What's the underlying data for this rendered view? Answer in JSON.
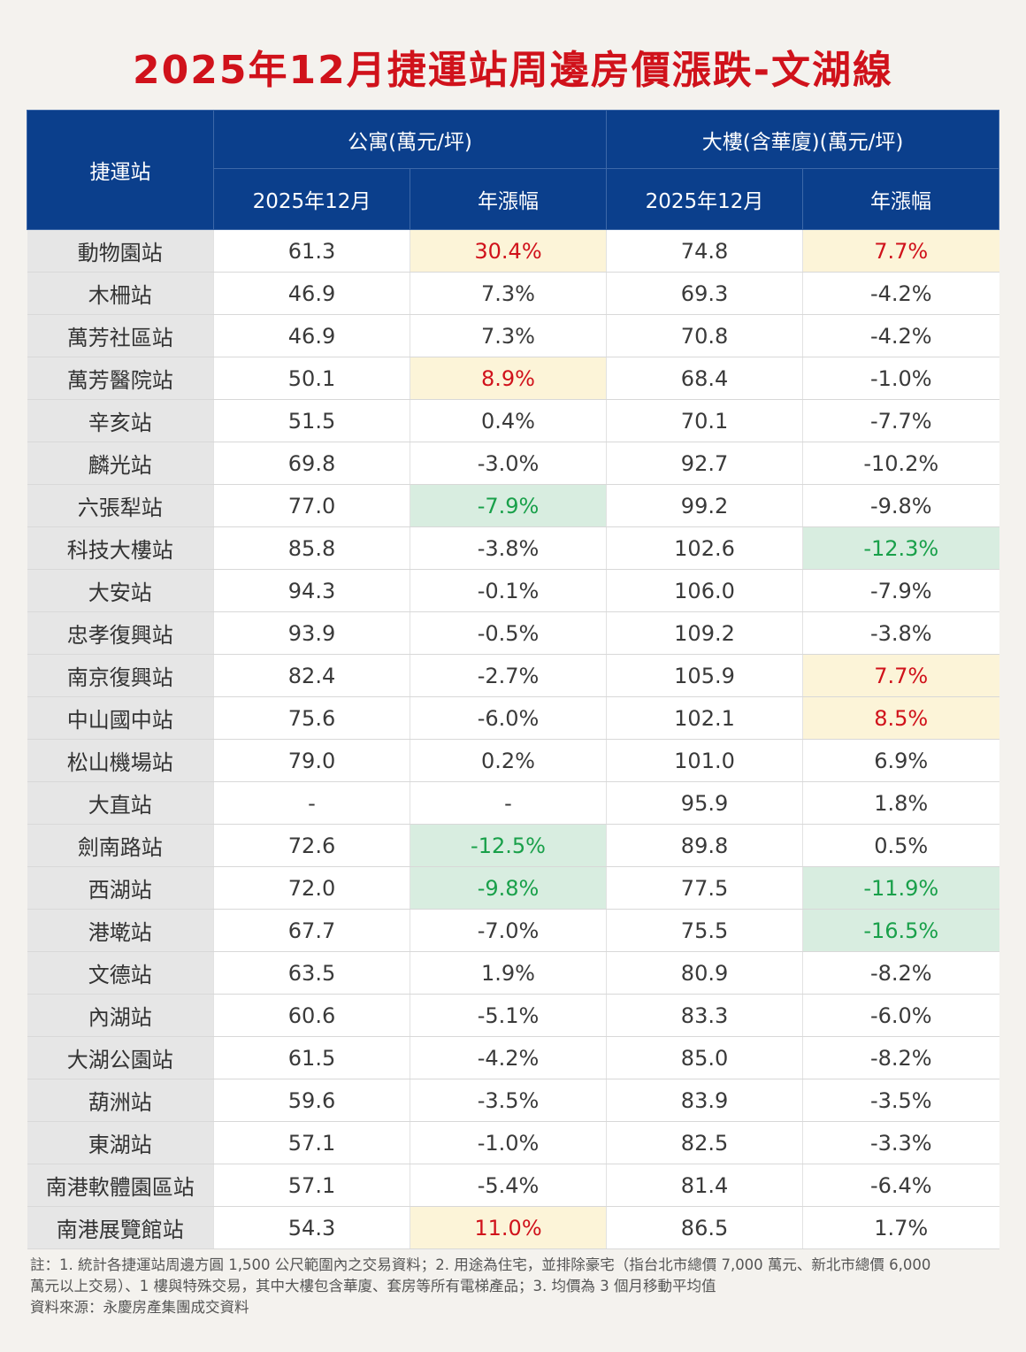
{
  "title": "2025年12月捷運站周邊房價漲跌-文湖線",
  "header": {
    "station": "捷運站",
    "apartment": "公寓(萬元/坪)",
    "building": "大樓(含華廈)(萬元/坪)",
    "date_col": "2025年12月",
    "change_col": "年漲幅"
  },
  "rows": [
    {
      "station": "動物園站",
      "apt_price": "61.3",
      "apt_change": "30.4%",
      "apt_hl": "up",
      "bld_price": "74.8",
      "bld_change": "7.7%",
      "bld_hl": "up"
    },
    {
      "station": "木柵站",
      "apt_price": "46.9",
      "apt_change": "7.3%",
      "apt_hl": "",
      "bld_price": "69.3",
      "bld_change": "-4.2%",
      "bld_hl": ""
    },
    {
      "station": "萬芳社區站",
      "apt_price": "46.9",
      "apt_change": "7.3%",
      "apt_hl": "",
      "bld_price": "70.8",
      "bld_change": "-4.2%",
      "bld_hl": ""
    },
    {
      "station": "萬芳醫院站",
      "apt_price": "50.1",
      "apt_change": "8.9%",
      "apt_hl": "up",
      "bld_price": "68.4",
      "bld_change": "-1.0%",
      "bld_hl": ""
    },
    {
      "station": "辛亥站",
      "apt_price": "51.5",
      "apt_change": "0.4%",
      "apt_hl": "",
      "bld_price": "70.1",
      "bld_change": "-7.7%",
      "bld_hl": ""
    },
    {
      "station": "麟光站",
      "apt_price": "69.8",
      "apt_change": "-3.0%",
      "apt_hl": "",
      "bld_price": "92.7",
      "bld_change": "-10.2%",
      "bld_hl": ""
    },
    {
      "station": "六張犁站",
      "apt_price": "77.0",
      "apt_change": "-7.9%",
      "apt_hl": "down",
      "bld_price": "99.2",
      "bld_change": "-9.8%",
      "bld_hl": ""
    },
    {
      "station": "科技大樓站",
      "apt_price": "85.8",
      "apt_change": "-3.8%",
      "apt_hl": "",
      "bld_price": "102.6",
      "bld_change": "-12.3%",
      "bld_hl": "down"
    },
    {
      "station": "大安站",
      "apt_price": "94.3",
      "apt_change": "-0.1%",
      "apt_hl": "",
      "bld_price": "106.0",
      "bld_change": "-7.9%",
      "bld_hl": ""
    },
    {
      "station": "忠孝復興站",
      "apt_price": "93.9",
      "apt_change": "-0.5%",
      "apt_hl": "",
      "bld_price": "109.2",
      "bld_change": "-3.8%",
      "bld_hl": ""
    },
    {
      "station": "南京復興站",
      "apt_price": "82.4",
      "apt_change": "-2.7%",
      "apt_hl": "",
      "bld_price": "105.9",
      "bld_change": "7.7%",
      "bld_hl": "up"
    },
    {
      "station": "中山國中站",
      "apt_price": "75.6",
      "apt_change": "-6.0%",
      "apt_hl": "",
      "bld_price": "102.1",
      "bld_change": "8.5%",
      "bld_hl": "up"
    },
    {
      "station": "松山機場站",
      "apt_price": "79.0",
      "apt_change": "0.2%",
      "apt_hl": "",
      "bld_price": "101.0",
      "bld_change": "6.9%",
      "bld_hl": ""
    },
    {
      "station": "大直站",
      "apt_price": "-",
      "apt_change": "-",
      "apt_hl": "",
      "bld_price": "95.9",
      "bld_change": "1.8%",
      "bld_hl": ""
    },
    {
      "station": "劍南路站",
      "apt_price": "72.6",
      "apt_change": "-12.5%",
      "apt_hl": "down",
      "bld_price": "89.8",
      "bld_change": "0.5%",
      "bld_hl": ""
    },
    {
      "station": "西湖站",
      "apt_price": "72.0",
      "apt_change": "-9.8%",
      "apt_hl": "down",
      "bld_price": "77.5",
      "bld_change": "-11.9%",
      "bld_hl": "down"
    },
    {
      "station": "港墘站",
      "apt_price": "67.7",
      "apt_change": "-7.0%",
      "apt_hl": "",
      "bld_price": "75.5",
      "bld_change": "-16.5%",
      "bld_hl": "down"
    },
    {
      "station": "文德站",
      "apt_price": "63.5",
      "apt_change": "1.9%",
      "apt_hl": "",
      "bld_price": "80.9",
      "bld_change": "-8.2%",
      "bld_hl": ""
    },
    {
      "station": "內湖站",
      "apt_price": "60.6",
      "apt_change": "-5.1%",
      "apt_hl": "",
      "bld_price": "83.3",
      "bld_change": "-6.0%",
      "bld_hl": ""
    },
    {
      "station": "大湖公園站",
      "apt_price": "61.5",
      "apt_change": "-4.2%",
      "apt_hl": "",
      "bld_price": "85.0",
      "bld_change": "-8.2%",
      "bld_hl": ""
    },
    {
      "station": "葫洲站",
      "apt_price": "59.6",
      "apt_change": "-3.5%",
      "apt_hl": "",
      "bld_price": "83.9",
      "bld_change": "-3.5%",
      "bld_hl": ""
    },
    {
      "station": "東湖站",
      "apt_price": "57.1",
      "apt_change": "-1.0%",
      "apt_hl": "",
      "bld_price": "82.5",
      "bld_change": "-3.3%",
      "bld_hl": ""
    },
    {
      "station": "南港軟體園區站",
      "apt_price": "57.1",
      "apt_change": "-5.4%",
      "apt_hl": "",
      "bld_price": "81.4",
      "bld_change": "-6.4%",
      "bld_hl": ""
    },
    {
      "station": "南港展覽館站",
      "apt_price": "54.3",
      "apt_change": "11.0%",
      "apt_hl": "up",
      "bld_price": "86.5",
      "bld_change": "1.7%",
      "bld_hl": ""
    }
  ],
  "notes": {
    "line1": "註：1. 統計各捷運站周邊方圓 1,500 公尺範圍內之交易資料；2. 用途為住宅，並排除豪宅（指台北市總價 7,000 萬元、新北市總價 6,000",
    "line2": "萬元以上交易）、1 樓與特殊交易，其中大樓包含華廈、套房等所有電梯產品；3. 均價為 3 個月移動平均值",
    "source": "資料來源：永慶房產集團成交資料"
  },
  "colors": {
    "title": "#d0121b",
    "header_bg": "#0b3f8c",
    "increase_bg": "#fcf4d8",
    "increase_text": "#d0121b",
    "decrease_bg": "#d8ede0",
    "decrease_text": "#19a04a",
    "station_bg": "#e6e6e6"
  }
}
